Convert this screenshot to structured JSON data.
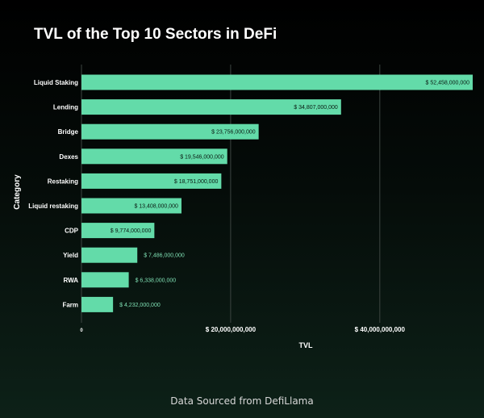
{
  "title": "TVL of the Top 10 Sectors in DeFi",
  "footer": "Data Sourced from DefiLlama",
  "colors": {
    "bar": "#63dba9",
    "grid": "#3c4541",
    "label_inside": "#0a1a12",
    "label_outside": "#7fe0b4"
  },
  "chart_data": {
    "type": "bar",
    "orientation": "horizontal",
    "title": "TVL of the Top 10 Sectors in DeFi",
    "xlabel": "TVL",
    "ylabel": "Category",
    "categories": [
      "Liquid Staking",
      "Lending",
      "Bridge",
      "Dexes",
      "Restaking",
      "Liquid restaking",
      "CDP",
      "Yield",
      "RWA",
      "Farm"
    ],
    "values": [
      52458000000,
      34807000000,
      23756000000,
      19546000000,
      18751000000,
      13408000000,
      9774000000,
      7486000000,
      6338000000,
      4232000000
    ],
    "value_labels": [
      "$ 52,458,000,000",
      "$ 34,807,000,000",
      "$ 23,756,000,000",
      "$ 19,546,000,000",
      "$ 18,751,000,000",
      "$ 13,408,000,000",
      "$ 9,774,000,000",
      "$ 7,486,000,000",
      "$ 6,338,000,000",
      "$ 4,232,000,000"
    ],
    "xticks": [
      0,
      20000000000,
      40000000000
    ],
    "xtick_labels": [
      "0",
      "$ 20,000,000,000",
      "$ 40,000,000,000"
    ],
    "xlim": [
      0,
      52458000000
    ],
    "grid": true
  }
}
